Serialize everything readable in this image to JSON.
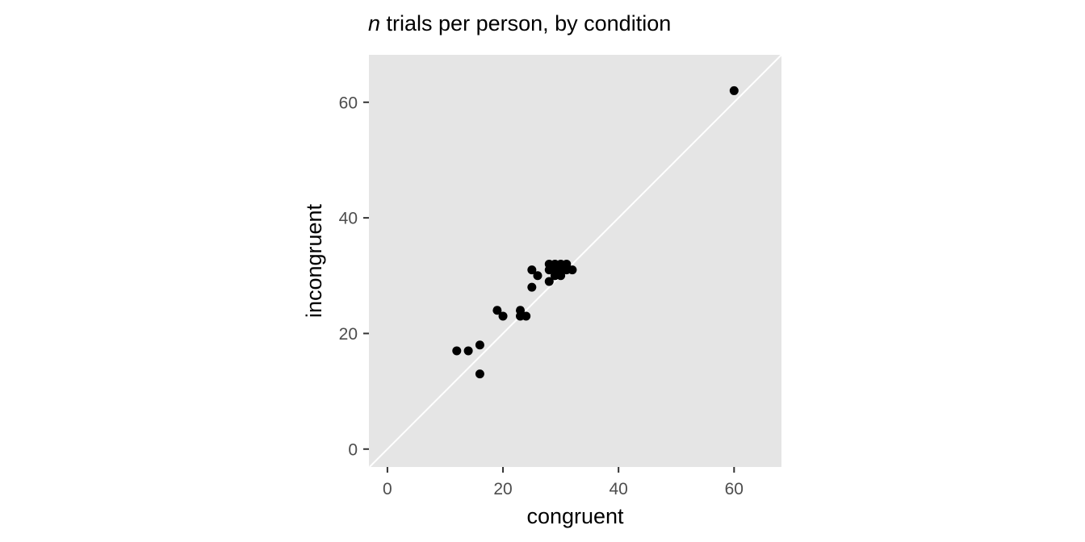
{
  "chart_data": {
    "type": "scatter",
    "title_em": "n",
    "title_rest": " trials per person, by condition",
    "xlabel": "congruent",
    "ylabel": "incongruent",
    "xlim": [
      -3.2,
      68.2
    ],
    "ylim": [
      -3.1,
      68.2
    ],
    "xticks": [
      0,
      20,
      40,
      60
    ],
    "yticks": [
      0,
      20,
      40,
      60
    ],
    "reference_line": {
      "type": "identity",
      "slope": 1,
      "intercept": 0,
      "color": "#ffffff"
    },
    "grid": false,
    "panel_background": "#e5e5e5",
    "point_color": "#000000",
    "points": [
      {
        "x": 60,
        "y": 62
      },
      {
        "x": 12,
        "y": 17
      },
      {
        "x": 14,
        "y": 17
      },
      {
        "x": 16,
        "y": 18
      },
      {
        "x": 16,
        "y": 13
      },
      {
        "x": 19,
        "y": 24
      },
      {
        "x": 20,
        "y": 23
      },
      {
        "x": 23,
        "y": 24
      },
      {
        "x": 23,
        "y": 23
      },
      {
        "x": 24,
        "y": 23
      },
      {
        "x": 25,
        "y": 31
      },
      {
        "x": 25,
        "y": 28
      },
      {
        "x": 26,
        "y": 30
      },
      {
        "x": 28,
        "y": 32
      },
      {
        "x": 28,
        "y": 31
      },
      {
        "x": 28,
        "y": 29
      },
      {
        "x": 29,
        "y": 32
      },
      {
        "x": 29,
        "y": 31
      },
      {
        "x": 29,
        "y": 30
      },
      {
        "x": 30,
        "y": 32
      },
      {
        "x": 30,
        "y": 31
      },
      {
        "x": 30,
        "y": 30
      },
      {
        "x": 31,
        "y": 32
      },
      {
        "x": 31,
        "y": 31
      },
      {
        "x": 32,
        "y": 31
      }
    ]
  }
}
